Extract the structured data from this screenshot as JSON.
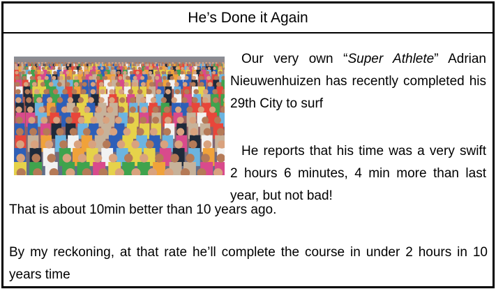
{
  "article": {
    "title": "He’s Done it Again",
    "paragraphs": [
      {
        "before": "Our very own “",
        "emphasis": "Super Athlete",
        "after": "” Adrian Nieuwenhuizen has recently completed his 29th City to surf"
      },
      {
        "text": "He reports that his time was a very swift 2 hours 6 minutes, 4 min more than last year, but not bad!"
      },
      {
        "text": "That is about 10min better than 10 years ago."
      },
      {
        "text": "By my reckoning, at that rate he’ll complete the course in under 2 hours in 10 years time"
      }
    ]
  }
}
